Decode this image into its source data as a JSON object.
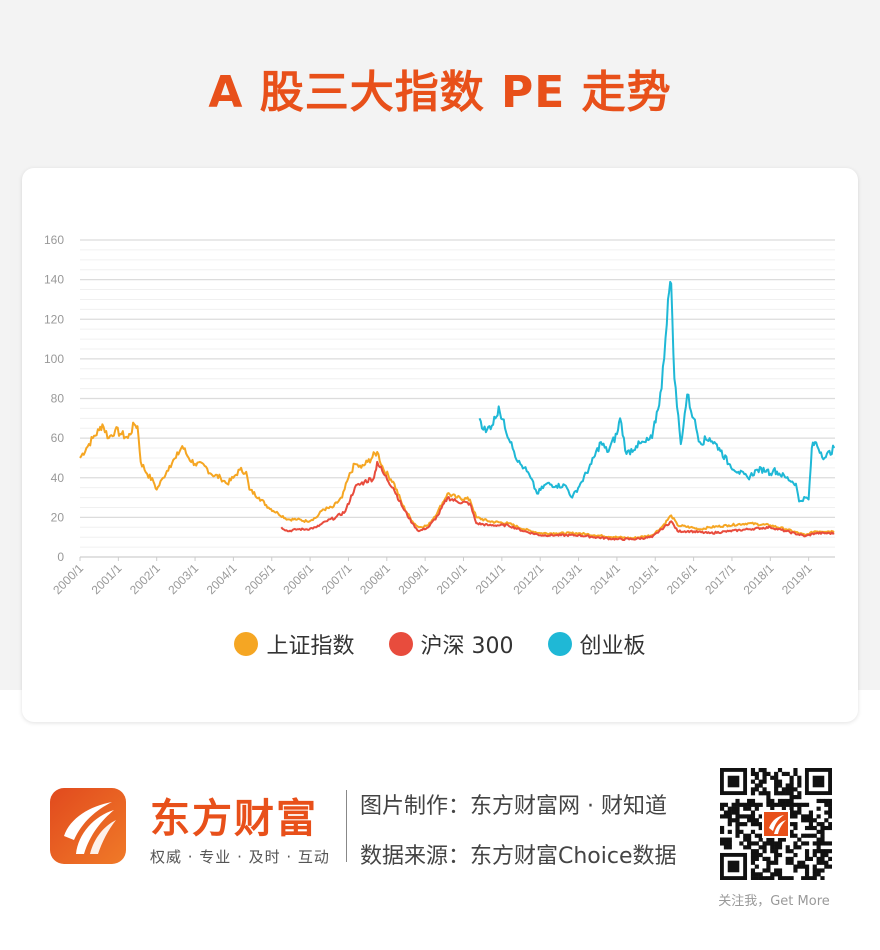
{
  "title": "A 股三大指数 PE 走势",
  "colors": {
    "accent": "#E8501A",
    "sse": "#F5A623",
    "csi300": "#E84C3D",
    "chinext": "#1FB8D6"
  },
  "chart_data": {
    "type": "line",
    "title": "",
    "xlabel": "",
    "ylabel": "",
    "ylim": [
      0,
      160
    ],
    "yticks": [
      0,
      20,
      40,
      60,
      80,
      100,
      120,
      140,
      160
    ],
    "xticks": [
      "2000/1",
      "2001/1",
      "2002/1",
      "2003/1",
      "2004/1",
      "2005/1",
      "2006/1",
      "2007/1",
      "2008/1",
      "2009/1",
      "2010/1",
      "2011/1",
      "2012/1",
      "2013/1",
      "2014/1",
      "2015/1",
      "2016/1",
      "2017/1",
      "2018/1",
      "2019/1"
    ],
    "xrange": [
      "2000-01",
      "2019-09"
    ],
    "grid": true,
    "legend_position": "bottom",
    "series": [
      {
        "name": "上证指数",
        "color": "#F5A623",
        "points": [
          [
            "2000-01",
            50
          ],
          [
            "2000-03",
            55
          ],
          [
            "2000-05",
            60
          ],
          [
            "2000-07",
            64
          ],
          [
            "2000-08",
            67
          ],
          [
            "2000-10",
            60
          ],
          [
            "2000-12",
            64
          ],
          [
            "2001-02",
            62
          ],
          [
            "2001-04",
            60
          ],
          [
            "2001-06",
            67
          ],
          [
            "2001-07",
            66
          ],
          [
            "2001-08",
            48
          ],
          [
            "2001-10",
            42
          ],
          [
            "2001-12",
            38
          ],
          [
            "2002-01",
            34
          ],
          [
            "2002-03",
            40
          ],
          [
            "2002-05",
            46
          ],
          [
            "2002-07",
            50
          ],
          [
            "2002-09",
            56
          ],
          [
            "2002-11",
            50
          ],
          [
            "2003-01",
            47
          ],
          [
            "2003-04",
            46
          ],
          [
            "2003-06",
            42
          ],
          [
            "2003-09",
            40
          ],
          [
            "2003-11",
            37
          ],
          [
            "2004-01",
            40
          ],
          [
            "2004-03",
            44
          ],
          [
            "2004-05",
            43
          ],
          [
            "2004-06",
            34
          ],
          [
            "2004-09",
            30
          ],
          [
            "2004-12",
            25
          ],
          [
            "2005-03",
            22
          ],
          [
            "2005-06",
            19
          ],
          [
            "2005-09",
            19
          ],
          [
            "2005-12",
            18
          ],
          [
            "2006-03",
            20
          ],
          [
            "2006-05",
            24
          ],
          [
            "2006-08",
            25
          ],
          [
            "2006-11",
            30
          ],
          [
            "2007-01",
            40
          ],
          [
            "2007-03",
            47
          ],
          [
            "2007-05",
            45
          ],
          [
            "2007-07",
            48
          ],
          [
            "2007-10",
            53
          ],
          [
            "2007-12",
            44
          ],
          [
            "2008-03",
            38
          ],
          [
            "2008-06",
            26
          ],
          [
            "2008-09",
            18
          ],
          [
            "2008-11",
            15
          ],
          [
            "2009-02",
            16
          ],
          [
            "2009-05",
            23
          ],
          [
            "2009-08",
            32
          ],
          [
            "2009-11",
            30
          ],
          [
            "2010-03",
            29
          ],
          [
            "2010-05",
            20
          ],
          [
            "2010-09",
            18
          ],
          [
            "2011-03",
            17
          ],
          [
            "2011-08",
            14
          ],
          [
            "2012-01",
            12
          ],
          [
            "2012-06",
            12
          ],
          [
            "2013-01",
            12
          ],
          [
            "2013-06",
            11
          ],
          [
            "2014-01",
            10
          ],
          [
            "2014-06",
            9.5
          ],
          [
            "2014-12",
            11
          ],
          [
            "2015-03",
            15
          ],
          [
            "2015-06",
            21
          ],
          [
            "2015-08",
            16
          ],
          [
            "2015-12",
            15
          ],
          [
            "2016-03",
            14
          ],
          [
            "2016-06",
            15
          ],
          [
            "2016-12",
            16
          ],
          [
            "2017-06",
            17
          ],
          [
            "2018-01",
            16
          ],
          [
            "2018-06",
            14
          ],
          [
            "2018-12",
            11
          ],
          [
            "2019-03",
            13
          ],
          [
            "2019-09",
            13
          ]
        ]
      },
      {
        "name": "沪深 300",
        "color": "#E84C3D",
        "points": [
          [
            "2005-04",
            15
          ],
          [
            "2005-06",
            13
          ],
          [
            "2005-09",
            14
          ],
          [
            "2005-12",
            14
          ],
          [
            "2006-03",
            15
          ],
          [
            "2006-06",
            18
          ],
          [
            "2006-09",
            20
          ],
          [
            "2006-12",
            23
          ],
          [
            "2007-03",
            35
          ],
          [
            "2007-06",
            38
          ],
          [
            "2007-09",
            40
          ],
          [
            "2007-10",
            48
          ],
          [
            "2007-12",
            42
          ],
          [
            "2008-03",
            35
          ],
          [
            "2008-06",
            25
          ],
          [
            "2008-09",
            17
          ],
          [
            "2008-11",
            13
          ],
          [
            "2009-02",
            15
          ],
          [
            "2009-05",
            21
          ],
          [
            "2009-08",
            30
          ],
          [
            "2009-11",
            28
          ],
          [
            "2010-03",
            27
          ],
          [
            "2010-05",
            17
          ],
          [
            "2010-09",
            16
          ],
          [
            "2011-03",
            16
          ],
          [
            "2011-08",
            13
          ],
          [
            "2012-01",
            11
          ],
          [
            "2012-06",
            11
          ],
          [
            "2013-01",
            11
          ],
          [
            "2013-06",
            10
          ],
          [
            "2014-01",
            9
          ],
          [
            "2014-06",
            9
          ],
          [
            "2014-12",
            10
          ],
          [
            "2015-03",
            14
          ],
          [
            "2015-06",
            18
          ],
          [
            "2015-08",
            13
          ],
          [
            "2015-12",
            13
          ],
          [
            "2016-06",
            12
          ],
          [
            "2016-12",
            13
          ],
          [
            "2017-06",
            14
          ],
          [
            "2018-01",
            15
          ],
          [
            "2018-06",
            13
          ],
          [
            "2018-12",
            10.5
          ],
          [
            "2019-03",
            12
          ],
          [
            "2019-09",
            12
          ]
        ]
      },
      {
        "name": "创业板",
        "color": "#1FB8D6",
        "points": [
          [
            "2010-06",
            70
          ],
          [
            "2010-08",
            63
          ],
          [
            "2010-11",
            70
          ],
          [
            "2010-12",
            76
          ],
          [
            "2011-02",
            65
          ],
          [
            "2011-04",
            58
          ],
          [
            "2011-06",
            48
          ],
          [
            "2011-08",
            45
          ],
          [
            "2011-10",
            40
          ],
          [
            "2011-12",
            32
          ],
          [
            "2012-03",
            37
          ],
          [
            "2012-06",
            36
          ],
          [
            "2012-09",
            36
          ],
          [
            "2012-11",
            30
          ],
          [
            "2013-02",
            38
          ],
          [
            "2013-05",
            47
          ],
          [
            "2013-08",
            58
          ],
          [
            "2013-10",
            53
          ],
          [
            "2014-01",
            62
          ],
          [
            "2014-02",
            70
          ],
          [
            "2014-04",
            52
          ],
          [
            "2014-07",
            56
          ],
          [
            "2014-10",
            58
          ],
          [
            "2014-12",
            60
          ],
          [
            "2015-03",
            85
          ],
          [
            "2015-05",
            130
          ],
          [
            "2015-06",
            138
          ],
          [
            "2015-07",
            90
          ],
          [
            "2015-09",
            57
          ],
          [
            "2015-11",
            82
          ],
          [
            "2016-01",
            70
          ],
          [
            "2016-03",
            58
          ],
          [
            "2016-06",
            60
          ],
          [
            "2016-09",
            55
          ],
          [
            "2016-12",
            47
          ],
          [
            "2017-03",
            43
          ],
          [
            "2017-06",
            40
          ],
          [
            "2017-09",
            44
          ],
          [
            "2017-12",
            44
          ],
          [
            "2018-01",
            42
          ],
          [
            "2018-02",
            44
          ],
          [
            "2018-06",
            40
          ],
          [
            "2018-09",
            37
          ],
          [
            "2018-10",
            28
          ],
          [
            "2018-12",
            30
          ],
          [
            "2019-01",
            29
          ],
          [
            "2019-02",
            55
          ],
          [
            "2019-03",
            58
          ],
          [
            "2019-06",
            50
          ],
          [
            "2019-09",
            55
          ]
        ]
      }
    ]
  },
  "legend": [
    "上证指数",
    "沪深 300",
    "创业板"
  ],
  "footer": {
    "brand": "东方财富",
    "slogan": "权威 · 专业 · 及时 · 互动",
    "credit_made": "图片制作：东方财富网 · 财知道",
    "credit_source": "数据来源：东方财富Choice数据",
    "qr_caption": "关注我，Get More",
    "qr_icon": "qr-code"
  }
}
